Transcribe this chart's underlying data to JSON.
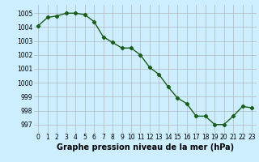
{
  "x": [
    0,
    1,
    2,
    3,
    4,
    5,
    6,
    7,
    8,
    9,
    10,
    11,
    12,
    13,
    14,
    15,
    16,
    17,
    18,
    19,
    20,
    21,
    22,
    23
  ],
  "y": [
    1004.1,
    1004.7,
    1004.8,
    1005.0,
    1005.0,
    1004.9,
    1004.4,
    1003.3,
    1002.9,
    1002.5,
    1002.5,
    1002.0,
    1001.1,
    1000.6,
    999.7,
    998.9,
    998.5,
    997.6,
    997.6,
    997.0,
    997.0,
    997.6,
    998.3,
    998.2
  ],
  "line_color": "#1a5c1a",
  "marker": "D",
  "marker_size": 2.2,
  "bg_color": "#cceeff",
  "grid_color": "#aaaaaa",
  "xlabel": "Graphe pression niveau de la mer (hPa)",
  "xlabel_fontsize": 7.0,
  "ylabel_ticks": [
    997,
    998,
    999,
    1000,
    1001,
    1002,
    1003,
    1004,
    1005
  ],
  "ylim": [
    996.4,
    1005.6
  ],
  "xlim": [
    -0.5,
    23.5
  ],
  "xticks": [
    0,
    1,
    2,
    3,
    4,
    5,
    6,
    7,
    8,
    9,
    10,
    11,
    12,
    13,
    14,
    15,
    16,
    17,
    18,
    19,
    20,
    21,
    22,
    23
  ],
  "tick_fontsize": 5.5,
  "line_width": 1.0
}
